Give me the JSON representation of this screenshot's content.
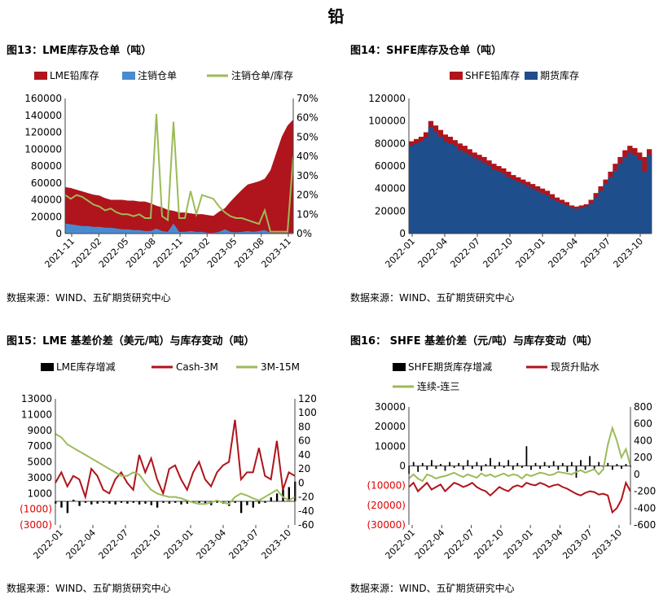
{
  "page": {
    "title": "铅"
  },
  "panels": {
    "p13": {
      "title": "图13：LME库存及仓单（吨）",
      "source": "数据来源：WIND、五矿期货研究中心"
    },
    "p14": {
      "title": "图14：SHFE库存及仓单（吨）",
      "source": "数据来源：WIND、五矿期货研究中心"
    },
    "p15": {
      "title": "图15：LME 基差价差（美元/吨）与库存变动（吨）",
      "source": "数据来源：WIND、五矿期货研究中心"
    },
    "p16": {
      "title": "图16： SHFE 基差价差（元/吨）与库存变动（吨）",
      "source": "数据来源：WIND、五矿期货研究中心"
    }
  },
  "chart_data": [
    {
      "id": "p13",
      "type": "area",
      "series": [
        {
          "name": "LME铅库存",
          "kind": "area",
          "axis": "left",
          "color": "#b0141c",
          "values": [
            55000,
            54000,
            52000,
            50000,
            48000,
            46000,
            45000,
            42000,
            40000,
            40000,
            40000,
            39000,
            39000,
            38000,
            38000,
            36000,
            33000,
            31000,
            28000,
            27000,
            25000,
            25000,
            24000,
            23000,
            23000,
            22000,
            21000,
            26000,
            30000,
            38000,
            45000,
            52000,
            58000,
            60000,
            62000,
            65000,
            75000,
            95000,
            115000,
            128000,
            135000
          ]
        },
        {
          "name": "注销仓单",
          "kind": "area",
          "axis": "left",
          "color": "#4a8bd0",
          "values": [
            12000,
            11000,
            10000,
            9000,
            9000,
            8000,
            8000,
            7000,
            7000,
            6000,
            5000,
            5000,
            4000,
            4000,
            3000,
            3000,
            6000,
            3000,
            2000,
            12000,
            2000,
            2000,
            3000,
            2000,
            2000,
            1000,
            1000,
            2000,
            5000,
            2000,
            1500,
            2000,
            3000,
            2000,
            3000,
            4000,
            1000,
            1000,
            1000,
            1000,
            1000
          ]
        },
        {
          "name": "注销仓单/库存",
          "kind": "line",
          "axis": "right",
          "color": "#9bbb59",
          "values": [
            20,
            18,
            20,
            19,
            17,
            15,
            14,
            12,
            13,
            11,
            10,
            10,
            9,
            10,
            8,
            8,
            62,
            9,
            7,
            58,
            8,
            8,
            22,
            10,
            20,
            19,
            18,
            14,
            11,
            9,
            8,
            8,
            7,
            6,
            5,
            12,
            1,
            1,
            1,
            1,
            40
          ]
        }
      ],
      "x_labels": [
        "2021-11",
        "2022-02",
        "2022-05",
        "2022-08",
        "2022-11",
        "2023-02",
        "2023-05",
        "2023-08",
        "2023-11"
      ],
      "ylim_left": [
        0,
        160000
      ],
      "yticks_left": [
        "0",
        "20000",
        "40000",
        "60000",
        "80000",
        "100000",
        "120000",
        "140000",
        "160000"
      ],
      "ylim_right": [
        0,
        70
      ],
      "yticks_right": [
        "0%",
        "10%",
        "20%",
        "30%",
        "40%",
        "50%",
        "60%",
        "70%"
      ]
    },
    {
      "id": "p14",
      "type": "bar",
      "series": [
        {
          "name": "SHFE铅库存",
          "color": "#b0141c",
          "values": [
            82000,
            84000,
            86000,
            90000,
            100000,
            96000,
            92000,
            88000,
            86000,
            83000,
            80000,
            78000,
            75000,
            72000,
            70000,
            68000,
            65000,
            62000,
            60000,
            58000,
            55000,
            52000,
            50000,
            48000,
            46000,
            44000,
            42000,
            40000,
            38000,
            35000,
            32000,
            30000,
            28000,
            25000,
            24000,
            25000,
            26000,
            30000,
            36000,
            42000,
            48000,
            55000,
            62000,
            68000,
            74000,
            78000,
            76000,
            72000,
            68000,
            75000
          ]
        },
        {
          "name": "期货库存",
          "color": "#1f4e8c",
          "values": [
            78000,
            80000,
            82000,
            85000,
            95000,
            90000,
            86000,
            82000,
            80000,
            78000,
            74000,
            72000,
            70000,
            67000,
            65000,
            63000,
            60000,
            57000,
            55000,
            53000,
            50000,
            48000,
            46000,
            44000,
            42000,
            40000,
            38000,
            36000,
            34000,
            31000,
            29000,
            27000,
            25000,
            23000,
            22000,
            23000,
            24000,
            27000,
            32000,
            38000,
            44000,
            50000,
            56000,
            62000,
            68000,
            72000,
            70000,
            66000,
            55000,
            70000
          ]
        }
      ],
      "x_labels": [
        "2022-01",
        "2022-04",
        "2022-07",
        "2022-10",
        "2023-01",
        "2023-04",
        "2023-07",
        "2023-10"
      ],
      "ylim": [
        0,
        120000
      ],
      "yticks": [
        "0",
        "20000",
        "40000",
        "60000",
        "80000",
        "100000",
        "120000"
      ]
    },
    {
      "id": "p15",
      "type": "line",
      "series": [
        {
          "name": "LME库存增减",
          "kind": "bar",
          "axis": "left",
          "color": "#000000",
          "values": [
            -300,
            -800,
            -1500,
            200,
            -600,
            -200,
            -400,
            -300,
            -200,
            -300,
            -400,
            -200,
            -300,
            -200,
            -400,
            -300,
            -500,
            -800,
            -200,
            -300,
            -200,
            -400,
            -300,
            -100,
            -200,
            -300,
            -500,
            -200,
            -300,
            -600,
            -200,
            -1500,
            -500,
            -800,
            -300,
            -200,
            500,
            1000,
            1500,
            1800,
            2500
          ]
        },
        {
          "name": "Cash-3M",
          "kind": "line",
          "axis": "right",
          "color": "#b0141c",
          "values": [
            0,
            15,
            -5,
            10,
            5,
            -20,
            20,
            10,
            -10,
            -15,
            5,
            15,
            0,
            -10,
            40,
            15,
            35,
            5,
            -15,
            20,
            25,
            5,
            -10,
            15,
            30,
            5,
            -5,
            15,
            25,
            30,
            90,
            5,
            15,
            15,
            50,
            10,
            5,
            60,
            -10,
            15,
            10
          ]
        },
        {
          "name": "3M-15M",
          "kind": "line",
          "axis": "right",
          "color": "#9bbb59",
          "values": [
            70,
            65,
            55,
            50,
            45,
            40,
            35,
            30,
            25,
            20,
            15,
            10,
            10,
            15,
            12,
            0,
            -10,
            -15,
            -18,
            -20,
            -20,
            -22,
            -25,
            -28,
            -30,
            -30,
            -28,
            -25,
            -28,
            -30,
            -20,
            -15,
            -18,
            -22,
            -25,
            -20,
            -15,
            -10,
            -20,
            -25,
            -20
          ]
        }
      ],
      "x_labels": [
        "2022-01",
        "2022-04",
        "2022-07",
        "2022-10",
        "2023-01",
        "2023-04",
        "2023-07",
        "2023-10"
      ],
      "ylim_left": [
        -3000,
        13000
      ],
      "yticks_left": [
        "(3000)",
        "(1000)",
        "1000",
        "3000",
        "5000",
        "7000",
        "9000",
        "11000",
        "13000"
      ],
      "ylim_right": [
        -60,
        120
      ],
      "yticks_right": [
        "-60",
        "-40",
        "-20",
        "0",
        "20",
        "40",
        "60",
        "80",
        "100",
        "120"
      ]
    },
    {
      "id": "p16",
      "type": "line",
      "series": [
        {
          "name": "SHFE期货库存增减",
          "kind": "bar",
          "axis": "left",
          "color": "#000000",
          "values": [
            -4000,
            2000,
            -3000,
            1500,
            -2000,
            3000,
            -1500,
            1000,
            -2500,
            2000,
            -1000,
            1500,
            -2000,
            3000,
            -1500,
            2000,
            -2500,
            1000,
            4000,
            -1500,
            2000,
            -1000,
            3000,
            -2000,
            1500,
            -1000,
            10000,
            -2000,
            1500,
            -1500,
            2000,
            -1000,
            2500,
            -2000,
            1500,
            -3000,
            2000,
            -6000,
            3000,
            -2000,
            5000,
            -1500,
            2000,
            -1000,
            1500,
            -2000,
            1000,
            -1500,
            1000,
            -500
          ]
        },
        {
          "name": "现货升贴水",
          "kind": "line",
          "axis": "right",
          "color": "#b0141c",
          "values": [
            -150,
            -100,
            -200,
            -150,
            -100,
            -180,
            -150,
            -120,
            -200,
            -150,
            -100,
            -120,
            -150,
            -130,
            -100,
            -150,
            -180,
            -200,
            -250,
            -200,
            -150,
            -180,
            -200,
            -150,
            -130,
            -150,
            -100,
            -120,
            -130,
            -100,
            -120,
            -150,
            -130,
            -120,
            -150,
            -170,
            -200,
            -230,
            -250,
            -220,
            -200,
            -210,
            -240,
            -230,
            -250,
            -450,
            -400,
            -300,
            -100,
            -200
          ]
        },
        {
          "name": "连续-连三",
          "kind": "line",
          "axis": "right",
          "color": "#9bbb59",
          "values": [
            -50,
            0,
            -50,
            -80,
            0,
            -20,
            -50,
            -30,
            -20,
            0,
            20,
            -10,
            -30,
            0,
            -20,
            -40,
            10,
            -20,
            0,
            -30,
            -10,
            10,
            -20,
            0,
            -10,
            -50,
            0,
            -20,
            0,
            20,
            10,
            -10,
            0,
            30,
            20,
            10,
            0,
            30,
            50,
            20,
            40,
            60,
            0,
            60,
            350,
            550,
            400,
            200,
            300,
            100
          ]
        }
      ],
      "x_labels": [
        "2022-01",
        "2022-04",
        "2022-07",
        "2022-10",
        "2023-01",
        "2023-04",
        "2023-07",
        "2023-10"
      ],
      "ylim_left": [
        -30000,
        30000
      ],
      "yticks_left": [
        "(30000)",
        "(20000)",
        "(10000)",
        "0",
        "10000",
        "20000",
        "30000"
      ],
      "ylim_right": [
        -600,
        800
      ],
      "yticks_right": [
        "-600",
        "-400",
        "-200",
        "0",
        "200",
        "400",
        "600",
        "800"
      ]
    }
  ]
}
